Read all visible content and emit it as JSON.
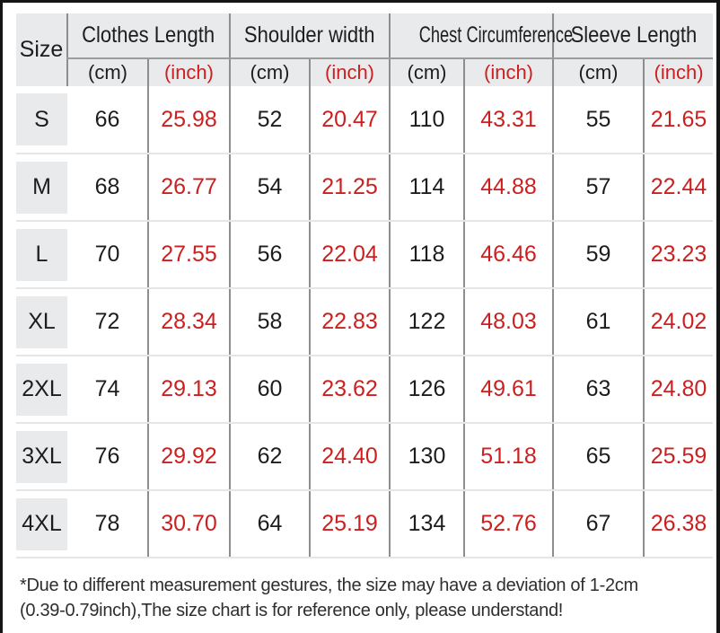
{
  "colors": {
    "accent_red": "#cc2020",
    "header_bg": "#e8eaec",
    "grid_line": "#8e8e8e",
    "row_line": "#e6e6e6",
    "text": "#1d1d1d",
    "frame_border": "#151515"
  },
  "table": {
    "size_header": "Size",
    "groups": [
      {
        "label": "Clothes Length"
      },
      {
        "label": "Shoulder width"
      },
      {
        "label": "Chest Circumference"
      },
      {
        "label": "Sleeve Length"
      }
    ],
    "unit_cm": "(cm)",
    "unit_inch": "(inch)",
    "rows": [
      {
        "size": "S",
        "values": [
          "66",
          "25.98",
          "52",
          "20.47",
          "110",
          "43.31",
          "55",
          "21.65"
        ]
      },
      {
        "size": "M",
        "values": [
          "68",
          "26.77",
          "54",
          "21.25",
          "114",
          "44.88",
          "57",
          "22.44"
        ]
      },
      {
        "size": "L",
        "values": [
          "70",
          "27.55",
          "56",
          "22.04",
          "118",
          "46.46",
          "59",
          "23.23"
        ]
      },
      {
        "size": "XL",
        "values": [
          "72",
          "28.34",
          "58",
          "22.83",
          "122",
          "48.03",
          "61",
          "24.02"
        ]
      },
      {
        "size": "2XL",
        "values": [
          "74",
          "29.13",
          "60",
          "23.62",
          "126",
          "49.61",
          "63",
          "24.80"
        ]
      },
      {
        "size": "3XL",
        "values": [
          "76",
          "29.92",
          "62",
          "24.40",
          "130",
          "51.18",
          "65",
          "25.59"
        ]
      },
      {
        "size": "4XL",
        "values": [
          "78",
          "30.70",
          "64",
          "25.19",
          "134",
          "52.76",
          "67",
          "26.38"
        ]
      }
    ]
  },
  "footnote": "*Due to different measurement gestures, the size may have a deviation of 1-2cm\n(0.39-0.79inch),The size chart is for reference only, please understand!",
  "chart_data": {
    "type": "table",
    "columns": [
      "Size",
      "Clothes Length (cm)",
      "Clothes Length (inch)",
      "Shoulder width (cm)",
      "Shoulder width (inch)",
      "Chest Circumference (cm)",
      "Chest Circumference (inch)",
      "Sleeve Length (cm)",
      "Sleeve Length (inch)"
    ],
    "rows": [
      [
        "S",
        66,
        25.98,
        52,
        20.47,
        110,
        43.31,
        55,
        21.65
      ],
      [
        "M",
        68,
        26.77,
        54,
        21.25,
        114,
        44.88,
        57,
        22.44
      ],
      [
        "L",
        70,
        27.55,
        56,
        22.04,
        118,
        46.46,
        59,
        23.23
      ],
      [
        "XL",
        72,
        28.34,
        58,
        22.83,
        122,
        48.03,
        61,
        24.02
      ],
      [
        "2XL",
        74,
        29.13,
        60,
        23.62,
        126,
        49.61,
        63,
        24.8
      ],
      [
        "3XL",
        76,
        29.92,
        62,
        24.4,
        130,
        51.18,
        65,
        25.59
      ],
      [
        "4XL",
        78,
        30.7,
        64,
        25.19,
        134,
        52.76,
        67,
        26.38
      ]
    ]
  }
}
